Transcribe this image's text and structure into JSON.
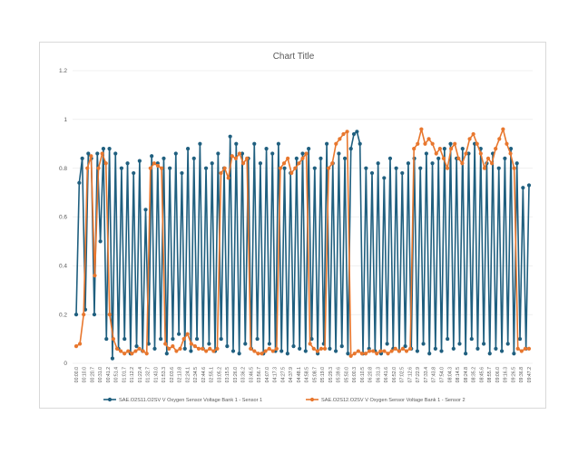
{
  "chart_data": {
    "type": "line",
    "title": "Chart Title",
    "xlabel": "",
    "ylabel": "",
    "ylim": [
      0,
      1.2
    ],
    "yticks": [
      "0",
      "0.2",
      "0.4",
      "0.6",
      "0.8",
      "1",
      "1.2"
    ],
    "x_tick_labels": [
      "00:00.0",
      "00:10.0",
      "00:20.7",
      "00:31.0",
      "00:41.2",
      "00:51.4",
      "01:01.7",
      "01:12.2",
      "01:22.4",
      "01:32.7",
      "01:43.0",
      "01:53.3",
      "02:03.6",
      "02:13.8",
      "02:24.1",
      "02:34.5",
      "02:44.6",
      "02:55.1",
      "03:05.2",
      "03:15.5",
      "03:26.0",
      "03:36.2",
      "03:46.5",
      "03:56.7",
      "04:07.0",
      "04:17.3",
      "04:27.5",
      "04:37.9",
      "04:48.1",
      "04:58.5",
      "05:08.7",
      "05:19.0",
      "05:29.3",
      "05:39.6",
      "05:50.0",
      "06:00.3",
      "06:10.5",
      "06:20.8",
      "06:31.3",
      "06:41.6",
      "06:52.0",
      "07:02.5",
      "07:12.6",
      "07:22.9",
      "07:33.4",
      "07:43.8",
      "07:54.0",
      "08:04.3",
      "08:14.5",
      "08:24.8",
      "08:35.2",
      "08:45.6",
      "08:55.7",
      "09:06.0",
      "09:16.3",
      "09:26.5",
      "09:36.8",
      "09:47.2"
    ],
    "grid": true,
    "legend_position": "bottom",
    "series": [
      {
        "name": "SAE.O2S11.O2SV V Oxygen Sensor Voltage Bank 1 - Sensor 1",
        "color": "#1f5f7f",
        "values": [
          0.2,
          0.74,
          0.84,
          0.22,
          0.86,
          0.84,
          0.2,
          0.86,
          0.5,
          0.88,
          0.1,
          0.88,
          0.02,
          0.86,
          0.06,
          0.8,
          0.1,
          0.82,
          0.04,
          0.78,
          0.07,
          0.83,
          0.05,
          0.63,
          0.08,
          0.85,
          0.06,
          0.82,
          0.1,
          0.84,
          0.04,
          0.8,
          0.1,
          0.86,
          0.12,
          0.78,
          0.06,
          0.88,
          0.05,
          0.84,
          0.1,
          0.9,
          0.06,
          0.8,
          0.08,
          0.82,
          0.05,
          0.86,
          0.1,
          0.8,
          0.07,
          0.93,
          0.05,
          0.9,
          0.04,
          0.86,
          0.08,
          0.84,
          0.06,
          0.9,
          0.1,
          0.82,
          0.04,
          0.88,
          0.08,
          0.86,
          0.05,
          0.9,
          0.05,
          0.8,
          0.04,
          0.78,
          0.07,
          0.84,
          0.06,
          0.86,
          0.05,
          0.88,
          0.1,
          0.8,
          0.04,
          0.84,
          0.08,
          0.9,
          0.06,
          0.82,
          0.05,
          0.86,
          0.07,
          0.84,
          0.04,
          0.88,
          0.94,
          0.95,
          0.9,
          0.04,
          0.8,
          0.06,
          0.78,
          0.05,
          0.82,
          0.04,
          0.76,
          0.08,
          0.84,
          0.06,
          0.8,
          0.05,
          0.78,
          0.07,
          0.82,
          0.06,
          0.84,
          0.05,
          0.8,
          0.08,
          0.86,
          0.04,
          0.82,
          0.06,
          0.84,
          0.05,
          0.88,
          0.1,
          0.9,
          0.06,
          0.84,
          0.08,
          0.88,
          0.04,
          0.86,
          0.1,
          0.9,
          0.06,
          0.88,
          0.08,
          0.82,
          0.04,
          0.86,
          0.06,
          0.8,
          0.05,
          0.84,
          0.08,
          0.88,
          0.04,
          0.82,
          0.1,
          0.72,
          0.06,
          0.73
        ]
      },
      {
        "name": "SAE.O2S12.O2SV V Oxygen Sensor Voltage Bank 1 - Sensor 2",
        "color": "#e8772e",
        "values": [
          0.07,
          0.08,
          0.2,
          0.8,
          0.85,
          0.36,
          0.8,
          0.86,
          0.82,
          0.2,
          0.1,
          0.06,
          0.05,
          0.04,
          0.05,
          0.04,
          0.05,
          0.06,
          0.05,
          0.04,
          0.8,
          0.82,
          0.81,
          0.8,
          0.08,
          0.06,
          0.07,
          0.05,
          0.06,
          0.1,
          0.12,
          0.08,
          0.07,
          0.06,
          0.06,
          0.05,
          0.06,
          0.05,
          0.06,
          0.78,
          0.8,
          0.76,
          0.85,
          0.84,
          0.86,
          0.82,
          0.84,
          0.06,
          0.05,
          0.04,
          0.04,
          0.05,
          0.06,
          0.05,
          0.06,
          0.8,
          0.82,
          0.84,
          0.78,
          0.8,
          0.82,
          0.84,
          0.86,
          0.08,
          0.06,
          0.05,
          0.06,
          0.06,
          0.8,
          0.82,
          0.9,
          0.92,
          0.94,
          0.95,
          0.03,
          0.04,
          0.05,
          0.04,
          0.04,
          0.05,
          0.05,
          0.04,
          0.05,
          0.05,
          0.04,
          0.05,
          0.06,
          0.05,
          0.06,
          0.05,
          0.06,
          0.88,
          0.9,
          0.96,
          0.9,
          0.92,
          0.9,
          0.86,
          0.88,
          0.84,
          0.8,
          0.88,
          0.9,
          0.84,
          0.82,
          0.86,
          0.92,
          0.94,
          0.9,
          0.86,
          0.8,
          0.84,
          0.82,
          0.88,
          0.92,
          0.96,
          0.9,
          0.86,
          0.8,
          0.06,
          0.05,
          0.06,
          0.06
        ]
      }
    ]
  }
}
